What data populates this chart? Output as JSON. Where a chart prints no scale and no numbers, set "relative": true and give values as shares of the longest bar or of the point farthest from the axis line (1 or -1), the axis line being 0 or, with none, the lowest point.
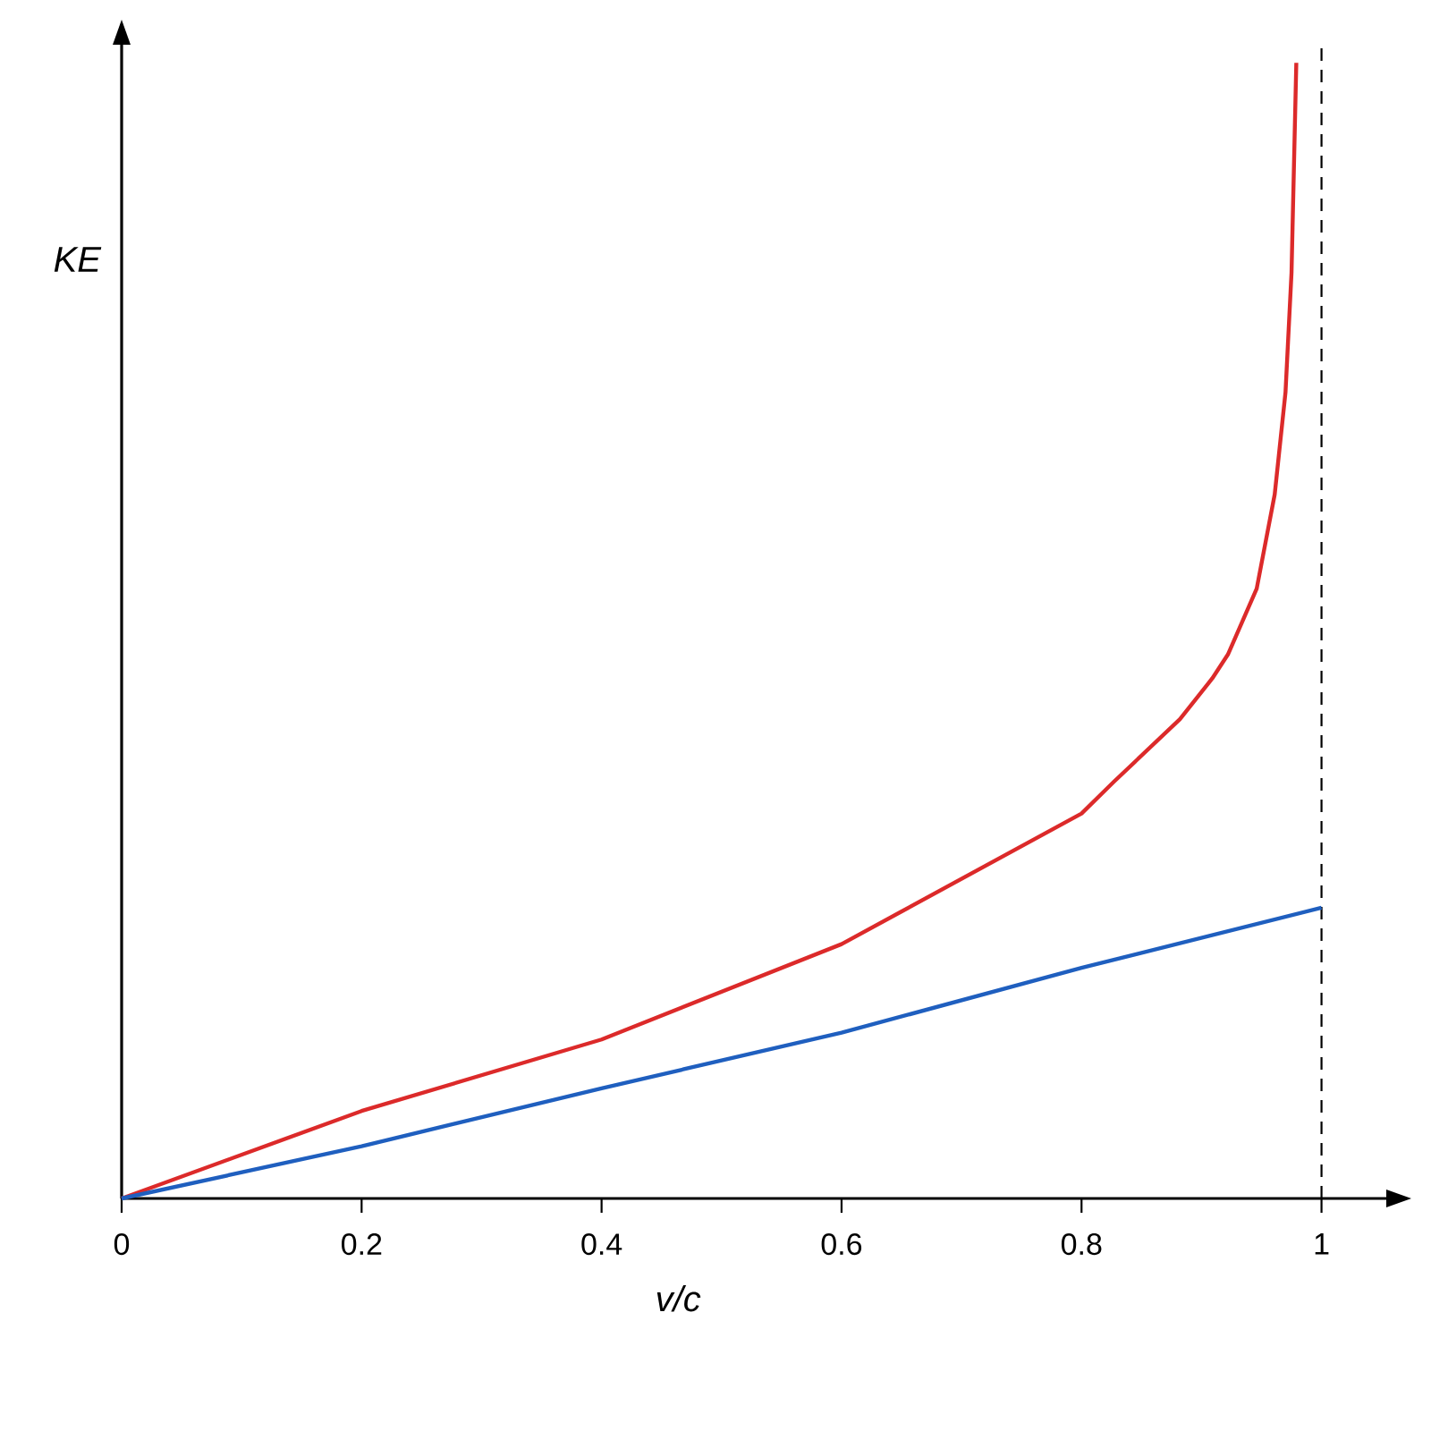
{
  "chart_data": {
    "type": "line",
    "xlabel": "v/c",
    "ylabel": "KE",
    "relative": true,
    "xlim": [
      0,
      1.054
    ],
    "xticks": [
      0,
      0.2,
      0.4,
      0.6,
      0.8,
      1
    ],
    "series": [
      {
        "color": "#dc2a2a",
        "x": [
          0,
          0.2,
          0.4,
          0.6,
          0.8,
          0.827,
          0.882,
          0.909,
          0.922,
          0.946,
          0.961,
          0.97,
          0.975,
          0.979
        ],
        "values": [
          0,
          0.077,
          0.14,
          0.224,
          0.339,
          0.367,
          0.422,
          0.458,
          0.479,
          0.537,
          0.62,
          0.71,
          0.815,
          1
        ]
      },
      {
        "color": "#1f5fbf",
        "x": [
          0,
          0.2,
          0.4,
          0.6,
          0.8,
          1
        ],
        "values": [
          0,
          0.046,
          0.097,
          0.146,
          0.203,
          0.256
        ]
      }
    ],
    "ref_lines": [
      {
        "axis": "x",
        "value": 1,
        "line_style": "dashed",
        "color": "#000000"
      }
    ]
  }
}
